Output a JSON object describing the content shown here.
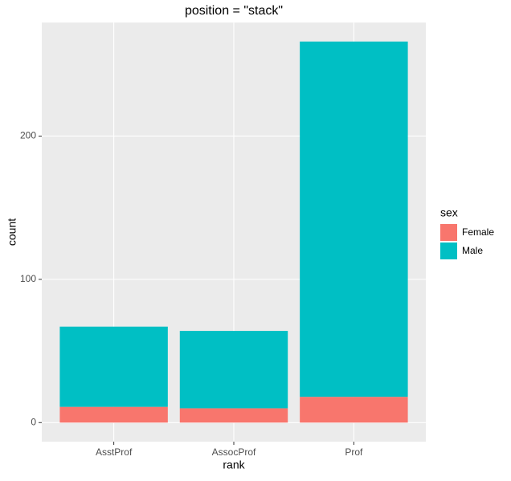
{
  "chart_data": {
    "type": "bar",
    "stacked": true,
    "title": "position = \"stack\"",
    "x_label": "rank",
    "y_label": "count",
    "legend_title": "sex",
    "categories": [
      "AsstProf",
      "AssocProf",
      "Prof"
    ],
    "series": [
      {
        "name": "Female",
        "color": "#F8766D",
        "values": [
          11,
          10,
          18
        ]
      },
      {
        "name": "Male",
        "color": "#00BFC4",
        "values": [
          56,
          54,
          248
        ]
      }
    ],
    "ylim": [
      -13.3,
      279.3
    ],
    "yticks": [
      0,
      100,
      200
    ],
    "grid": true,
    "legend": "right"
  }
}
